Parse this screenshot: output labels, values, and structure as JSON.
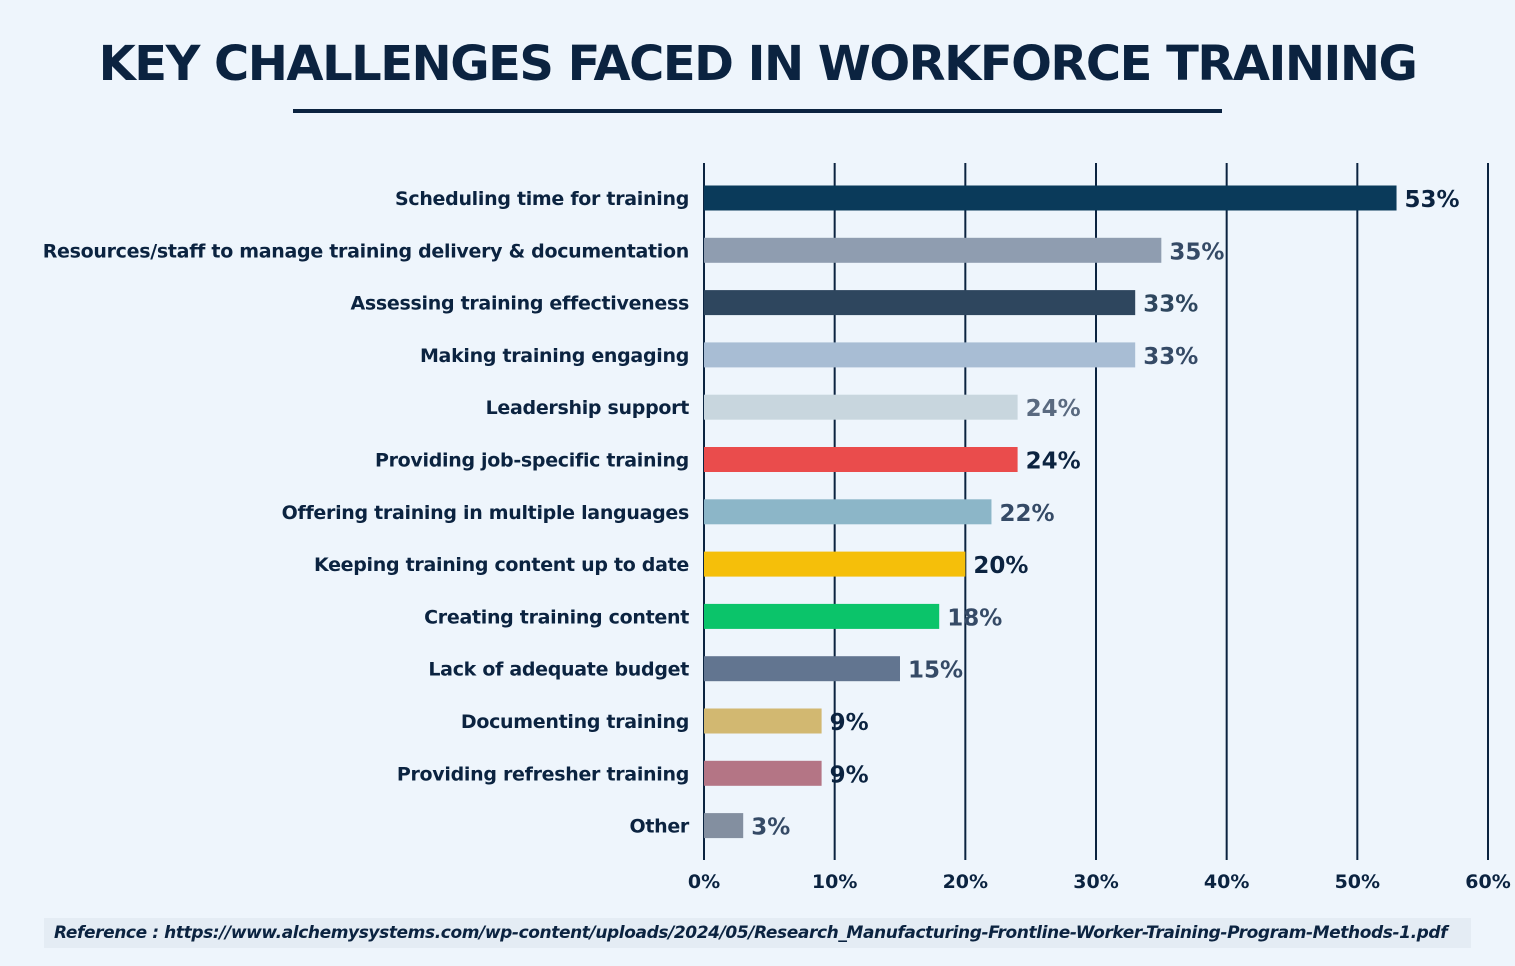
{
  "title": "KEY CHALLENGES FACED IN WORKFORCE TRAINING",
  "reference": "Reference : https://www.alchemysystems.com/wp-content/uploads/2024/05/Research_Manufacturing-Frontline-Worker-Training-Program-Methods-1.pdf",
  "chart_data": {
    "type": "bar",
    "orientation": "horizontal",
    "title": "KEY CHALLENGES FACED IN WORKFORCE TRAINING",
    "xlim": [
      0,
      60
    ],
    "grid": true,
    "x_ticks": [
      "0%",
      "10%",
      "20%",
      "30%",
      "40%",
      "50%",
      "60%"
    ],
    "categories": [
      "Scheduling time for training",
      "Resources/staff to manage training delivery & documentation",
      "Assessing training effectiveness",
      "Making training engaging",
      "Leadership support",
      "Providing job-specific training",
      "Offering training in multiple languages",
      "Keeping training content up to date",
      "Creating training content",
      "Lack of adequate budget",
      "Documenting training",
      "Providing refresher training",
      "Other"
    ],
    "values": [
      53,
      35,
      33,
      33,
      24,
      24,
      22,
      20,
      18,
      15,
      9,
      9,
      3
    ],
    "data_labels": [
      "53%",
      "35%",
      "33%",
      "33%",
      "24%",
      "24%",
      "22%",
      "20%",
      "18%",
      "15%",
      "9%",
      "9%",
      "3%"
    ],
    "colors": [
      "#0a3a5a",
      "#8f9db0",
      "#2e465e",
      "#a8bdd4",
      "#c8d6de",
      "#ea4c4c",
      "#8cb6c8",
      "#f5bf0a",
      "#0bc46a",
      "#627590",
      "#d2b871",
      "#b47585",
      "#838fa0"
    ],
    "label_colors": [
      "#0b2340",
      "#354a66",
      "#2e465e",
      "#354a66",
      "#5a6a80",
      "#0b2340",
      "#354a66",
      "#0b2340",
      "#354a66",
      "#354a66",
      "#0b2340",
      "#0b2340",
      "#354a66"
    ]
  }
}
